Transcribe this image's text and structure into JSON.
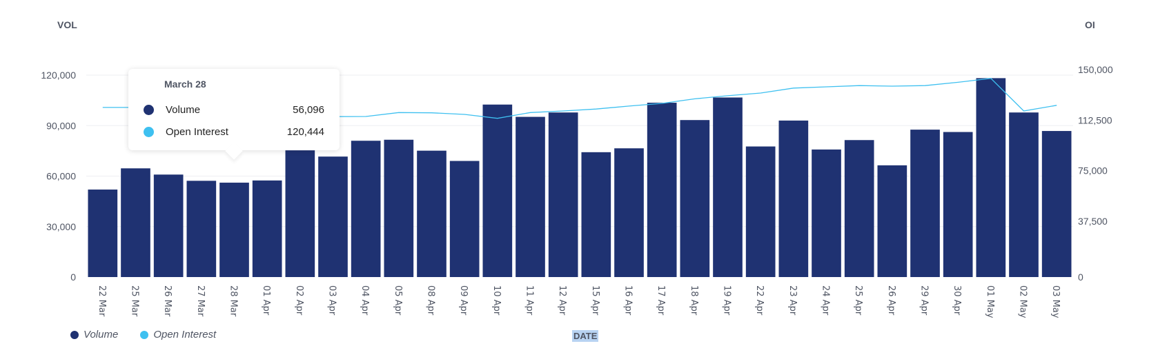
{
  "colors": {
    "volume": "#1f3272",
    "open_interest": "#3ec0f0",
    "grid": "#eeeff2",
    "text": "#4f5563"
  },
  "chart_data": {
    "type": "bar+line",
    "xlabel": "DATE",
    "ylabel_left": "VOL",
    "ylabel_right": "OI",
    "ylim_left": [
      0,
      120000
    ],
    "ylim_right": [
      0,
      150000
    ],
    "yticks_left": [
      "0",
      "30,000",
      "60,000",
      "90,000",
      "120,000"
    ],
    "yticks_left_values": [
      0,
      30000,
      60000,
      90000,
      120000
    ],
    "yticks_right": [
      "0",
      "37,500",
      "75,000",
      "112,500",
      "150,000"
    ],
    "categories": [
      "22 Mar",
      "25 Mar",
      "26 Mar",
      "27 Mar",
      "28 Mar",
      "01 Apr",
      "02 Apr",
      "03 Apr",
      "04 Apr",
      "05 Apr",
      "08 Apr",
      "09 Apr",
      "10 Apr",
      "11 Apr",
      "12 Apr",
      "15 Apr",
      "16 Apr",
      "17 Apr",
      "18 Apr",
      "19 Apr",
      "22 Apr",
      "23 Apr",
      "24 Apr",
      "25 Apr",
      "26 Apr",
      "29 Apr",
      "30 Apr",
      "01 May",
      "02 May",
      "03 May"
    ],
    "series": [
      {
        "name": "Volume",
        "type": "bar",
        "axis": "left",
        "values": [
          52000,
          64600,
          60900,
          57200,
          56096,
          57400,
          75300,
          71600,
          81000,
          81600,
          75100,
          69000,
          102500,
          95200,
          97800,
          74200,
          76500,
          103600,
          93300,
          106700,
          77600,
          93000,
          75800,
          81400,
          66400,
          87600,
          86200,
          118200,
          97800,
          86800
        ]
      },
      {
        "name": "Open Interest",
        "type": "line",
        "axis": "right",
        "values": [
          126000,
          126000,
          123500,
          121800,
          120444,
          119500,
          119000,
          119200,
          119300,
          122200,
          122000,
          120800,
          117900,
          122200,
          123400,
          124800,
          127000,
          129000,
          132400,
          134700,
          136700,
          140400,
          141300,
          142200,
          141800,
          142200,
          144700,
          147600,
          123400,
          127600
        ]
      }
    ],
    "grid": true,
    "legend_position": "bottom-left",
    "legend": [
      "Volume",
      "Open Interest"
    ]
  },
  "tooltip": {
    "title": "March 28",
    "rows": [
      {
        "label": "Volume",
        "value": "56,096"
      },
      {
        "label": "Open Interest",
        "value": "120,444"
      }
    ]
  }
}
